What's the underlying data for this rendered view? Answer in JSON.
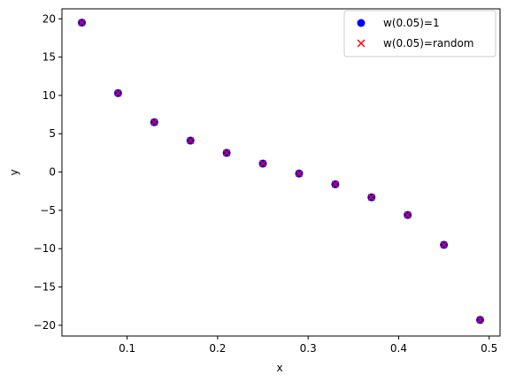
{
  "chart_data": {
    "type": "scatter",
    "title": "",
    "xlabel": "x",
    "ylabel": "y",
    "xlim": [
      0.028,
      0.512
    ],
    "ylim": [
      -21.4,
      21.3
    ],
    "xticks": [
      0.1,
      0.2,
      0.3,
      0.4,
      0.5
    ],
    "xtick_labels": [
      "0.1",
      "0.2",
      "0.3",
      "0.4",
      "0.5"
    ],
    "yticks": [
      -20,
      -15,
      -10,
      -5,
      0,
      5,
      10,
      15,
      20
    ],
    "ytick_labels": [
      "−20",
      "−15",
      "−10",
      "−5",
      "0",
      "5",
      "10",
      "15",
      "20"
    ],
    "grid": false,
    "legend_position": "top-right",
    "series": [
      {
        "name": "w(0.05)=1",
        "marker": "circle",
        "color": "#0000ff",
        "x": [
          0.05,
          0.09,
          0.13,
          0.17,
          0.21,
          0.25,
          0.29,
          0.33,
          0.37,
          0.41,
          0.45,
          0.49
        ],
        "y": [
          19.5,
          10.3,
          6.5,
          4.1,
          2.5,
          1.1,
          -0.2,
          -1.6,
          -3.3,
          -5.6,
          -9.5,
          -19.3
        ]
      },
      {
        "name": "w(0.05)=random",
        "marker": "x",
        "color": "#ff0000",
        "x": [
          0.05,
          0.09,
          0.13,
          0.17,
          0.21,
          0.25,
          0.29,
          0.33,
          0.37,
          0.41,
          0.45,
          0.49
        ],
        "y": [
          19.5,
          10.3,
          6.5,
          4.1,
          2.5,
          1.1,
          -0.2,
          -1.6,
          -3.3,
          -5.6,
          -9.5,
          -19.3
        ]
      }
    ]
  }
}
